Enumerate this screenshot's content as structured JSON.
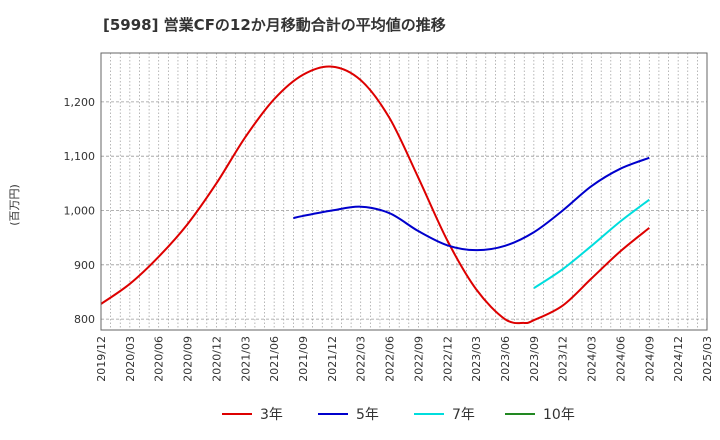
{
  "chart_data": {
    "type": "line",
    "title": "[5998]  営業CFの12か月移動合計の平均値の推移",
    "ylabel": "(百万円)",
    "xlabel": "",
    "ylim": [
      780,
      1290
    ],
    "y_ticks": [
      800,
      900,
      1000,
      1100,
      1200
    ],
    "y_tick_labels": [
      "800",
      "900",
      "1,000",
      "1,100",
      "1,200"
    ],
    "x_tick_labels": [
      "2019/12",
      "2020/03",
      "2020/06",
      "2020/09",
      "2020/12",
      "2021/03",
      "2021/06",
      "2021/09",
      "2021/12",
      "2022/03",
      "2022/06",
      "2022/09",
      "2022/12",
      "2023/03",
      "2023/06",
      "2023/09",
      "2023/12",
      "2024/03",
      "2024/06",
      "2024/09",
      "2024/12",
      "2025/03"
    ],
    "grid": true,
    "legend_position": "bottom",
    "series": [
      {
        "name": "3年",
        "color": "#dd0000",
        "x": [
          "2019/12",
          "2020/03",
          "2020/06",
          "2020/09",
          "2020/12",
          "2021/03",
          "2021/06",
          "2021/09",
          "2021/12",
          "2022/03",
          "2022/06",
          "2022/09",
          "2022/12",
          "2023/03",
          "2023/06",
          "2023/08",
          "2023/09",
          "2023/12",
          "2024/03",
          "2024/06",
          "2024/09"
        ],
        "values": [
          828,
          865,
          915,
          975,
          1050,
          1135,
          1205,
          1250,
          1265,
          1240,
          1170,
          1060,
          945,
          855,
          800,
          793,
          798,
          825,
          875,
          925,
          968
        ]
      },
      {
        "name": "5年",
        "color": "#0000cc",
        "x": [
          "2021/08",
          "2021/09",
          "2021/12",
          "2022/03",
          "2022/06",
          "2022/09",
          "2022/12",
          "2023/03",
          "2023/06",
          "2023/09",
          "2023/12",
          "2024/03",
          "2024/06",
          "2024/09"
        ],
        "values": [
          986,
          990,
          1000,
          1007,
          995,
          962,
          936,
          927,
          935,
          960,
          1000,
          1045,
          1077,
          1097
        ]
      },
      {
        "name": "7年",
        "color": "#00dddd",
        "x": [
          "2023/09",
          "2023/12",
          "2024/03",
          "2024/06",
          "2024/09"
        ],
        "values": [
          857,
          892,
          935,
          980,
          1020
        ]
      },
      {
        "name": "10年",
        "color": "#228822",
        "x": [],
        "values": []
      }
    ]
  }
}
